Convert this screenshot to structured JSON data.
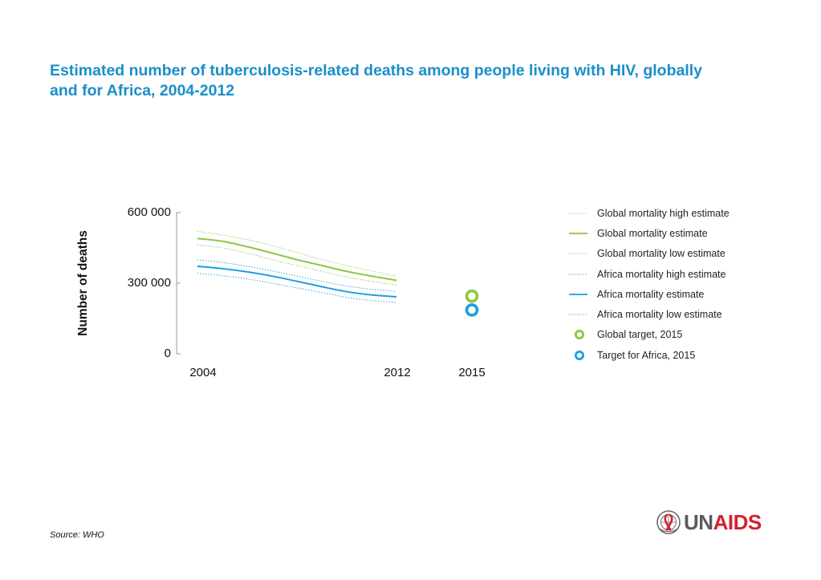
{
  "title": {
    "line1": "Estimated number of tuberculosis-related deaths among people living with HIV, globally",
    "line2": "and for Africa, 2004-2012"
  },
  "source": "Source: WHO",
  "logo": {
    "un": "UN",
    "aids": "AIDS"
  },
  "colors": {
    "global": "#8dc63f",
    "africa": "#1a9fe0",
    "title": "#1a8fc9",
    "logo_un": "#5a5a5a",
    "logo_aids": "#d6202e"
  },
  "chart_data": {
    "type": "line",
    "title": "",
    "xlabel": "",
    "ylabel": "Number of deaths",
    "yticks": [
      0,
      300000,
      600000
    ],
    "ytick_labels": [
      "0",
      "300 000",
      "600 000"
    ],
    "xtick_labels": [
      "2004",
      "2012",
      "2015"
    ],
    "xlim": [
      2004,
      2015
    ],
    "ylim": [
      0,
      600000
    ],
    "grid": false,
    "legend_position": "right",
    "series": [
      {
        "name": "Global mortality high estimate",
        "style": "dotted",
        "color": "#8dc63f",
        "x": [
          2004,
          2005,
          2006,
          2007,
          2008,
          2009,
          2010,
          2011,
          2012
        ],
        "values": [
          520000,
          505000,
          485000,
          460000,
          430000,
          400000,
          375000,
          352000,
          330000
        ]
      },
      {
        "name": "Global mortality estimate",
        "style": "solid",
        "color": "#8dc63f",
        "x": [
          2004,
          2005,
          2006,
          2007,
          2008,
          2009,
          2010,
          2011,
          2012
        ],
        "values": [
          490000,
          478000,
          455000,
          428000,
          400000,
          375000,
          350000,
          330000,
          312000
        ]
      },
      {
        "name": "Global mortality low estimate",
        "style": "dotted",
        "color": "#8dc63f",
        "x": [
          2004,
          2005,
          2006,
          2007,
          2008,
          2009,
          2010,
          2011,
          2012
        ],
        "values": [
          462000,
          450000,
          428000,
          400000,
          375000,
          350000,
          326000,
          308000,
          292000
        ]
      },
      {
        "name": "Africa mortality high estimate",
        "style": "dotted",
        "color": "#1a9fe0",
        "x": [
          2004,
          2005,
          2006,
          2007,
          2008,
          2009,
          2010,
          2011,
          2012
        ],
        "values": [
          400000,
          388000,
          372000,
          352000,
          330000,
          308000,
          288000,
          274000,
          265000
        ]
      },
      {
        "name": "Africa mortality estimate",
        "style": "solid",
        "color": "#1a9fe0",
        "x": [
          2004,
          2005,
          2006,
          2007,
          2008,
          2009,
          2010,
          2011,
          2012
        ],
        "values": [
          372000,
          362000,
          348000,
          330000,
          308000,
          285000,
          264000,
          250000,
          242000
        ]
      },
      {
        "name": "Africa mortality low estimate",
        "style": "dotted",
        "color": "#1a9fe0",
        "x": [
          2004,
          2005,
          2006,
          2007,
          2008,
          2009,
          2010,
          2011,
          2012
        ],
        "values": [
          342000,
          332000,
          318000,
          300000,
          280000,
          260000,
          240000,
          226000,
          218000
        ]
      },
      {
        "name": "Global target, 2015",
        "style": "ring",
        "color": "#8dc63f",
        "x": [
          2015
        ],
        "values": [
          245000
        ]
      },
      {
        "name": "Target for Africa, 2015",
        "style": "ring",
        "color": "#1a9fe0",
        "x": [
          2015
        ],
        "values": [
          186000
        ]
      }
    ]
  }
}
